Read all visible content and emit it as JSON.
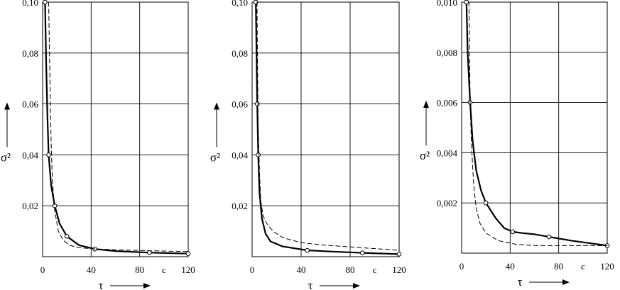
{
  "chart_data": [
    {
      "type": "line",
      "ylabel": "σ²",
      "xlabel": "τ",
      "x_unit": "c",
      "xlim": [
        0,
        120
      ],
      "ylim": [
        0,
        0.1
      ],
      "x_ticks": [
        "0",
        "40",
        "80",
        "120"
      ],
      "y_ticks": [
        "0,02",
        "0,04",
        "0,06",
        "0,08",
        "0,10"
      ],
      "grid": true,
      "series": [
        {
          "style": "solid",
          "x": [
            2,
            3,
            4,
            5,
            7,
            10,
            14,
            20,
            30,
            43,
            60,
            88,
            120
          ],
          "y": [
            0.1,
            0.075,
            0.055,
            0.04,
            0.028,
            0.02,
            0.013,
            0.008,
            0.0045,
            0.003,
            0.0022,
            0.0016,
            0.0012
          ],
          "markers_at": [
            0,
            3,
            5,
            7,
            9,
            11,
            12
          ]
        },
        {
          "style": "dashed",
          "x": [
            5,
            6,
            7,
            8,
            10,
            13,
            17,
            22,
            30,
            45,
            60,
            90,
            120
          ],
          "y": [
            0.1,
            0.07,
            0.045,
            0.03,
            0.018,
            0.01,
            0.0065,
            0.0045,
            0.0035,
            0.003,
            0.0027,
            0.0023,
            0.002
          ]
        }
      ]
    },
    {
      "type": "line",
      "ylabel": "σ²",
      "xlabel": "τ",
      "x_unit": "c",
      "xlim": [
        0,
        120
      ],
      "ylim": [
        0,
        0.1
      ],
      "x_ticks": [
        "0",
        "40",
        "80",
        "120"
      ],
      "y_ticks": [
        "0,02",
        "0,04",
        "0,06",
        "0,08",
        "0,10"
      ],
      "grid": true,
      "series": [
        {
          "style": "solid",
          "x": [
            3,
            3.6,
            4.2,
            5,
            6,
            8,
            11,
            15,
            25,
            45,
            65,
            90,
            120
          ],
          "y": [
            0.1,
            0.08,
            0.06,
            0.04,
            0.025,
            0.015,
            0.009,
            0.006,
            0.004,
            0.0025,
            0.002,
            0.0015,
            0.001
          ],
          "markers_at": [
            0,
            2,
            3,
            9,
            11,
            12
          ]
        },
        {
          "style": "dashed",
          "x": [
            4,
            4.5,
            5,
            6,
            7,
            9,
            12,
            17,
            25,
            40,
            60,
            90,
            120
          ],
          "y": [
            0.1,
            0.07,
            0.05,
            0.033,
            0.022,
            0.016,
            0.013,
            0.01,
            0.0075,
            0.0055,
            0.0045,
            0.0035,
            0.0025
          ]
        }
      ]
    },
    {
      "type": "line",
      "ylabel": "σ²",
      "xlabel": "τ",
      "x_unit": "c",
      "xlim": [
        0,
        120
      ],
      "ylim": [
        0,
        0.01
      ],
      "x_ticks": [
        "0",
        "40",
        "80",
        "120"
      ],
      "y_ticks": [
        "0,002",
        "0,004",
        "0,006",
        "0,008",
        "0,010"
      ],
      "grid": true,
      "series": [
        {
          "style": "solid",
          "x": [
            4,
            5,
            7,
            9,
            12,
            16,
            20,
            28,
            35,
            42,
            50,
            60,
            72,
            90,
            105,
            120
          ],
          "y": [
            0.01,
            0.008,
            0.006,
            0.0045,
            0.0033,
            0.0025,
            0.002,
            0.0014,
            0.001,
            0.00085,
            0.0008,
            0.00075,
            0.00065,
            0.0005,
            0.0004,
            0.0003
          ],
          "markers_at": [
            0,
            2,
            6,
            9,
            12,
            15
          ]
        },
        {
          "style": "dashed",
          "x": [
            6,
            6.5,
            7,
            8,
            9,
            10,
            12,
            15,
            20,
            30,
            45,
            60,
            90,
            120
          ],
          "y": [
            0.01,
            0.008,
            0.006,
            0.0045,
            0.0035,
            0.0027,
            0.0018,
            0.0012,
            0.0008,
            0.0005,
            0.00035,
            0.0003,
            0.0003,
            0.0003
          ]
        }
      ]
    }
  ]
}
